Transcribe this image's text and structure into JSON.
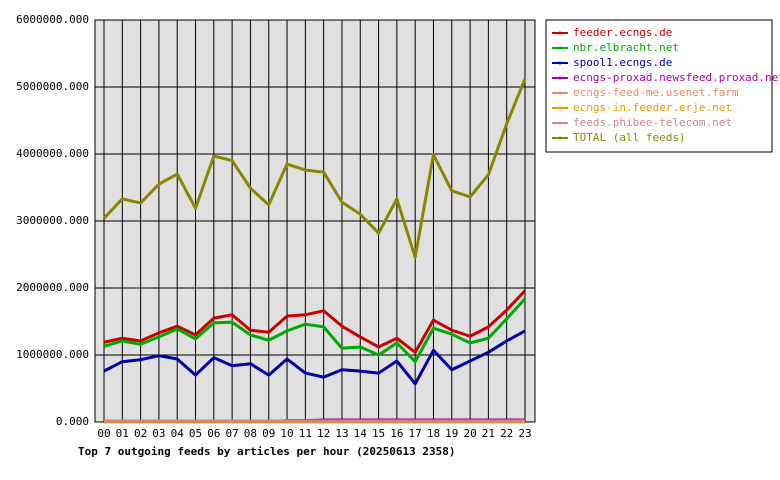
{
  "chart_data": {
    "type": "line",
    "title": "Top 7 outgoing feeds by articles per hour (20250613 2358)",
    "categories": [
      "00",
      "01",
      "02",
      "03",
      "04",
      "05",
      "06",
      "07",
      "08",
      "09",
      "10",
      "11",
      "12",
      "13",
      "14",
      "15",
      "16",
      "17",
      "18",
      "19",
      "20",
      "21",
      "22",
      "23"
    ],
    "ylim": [
      0,
      6000000
    ],
    "yticks": [
      {
        "value": 0,
        "label": "0.000"
      },
      {
        "value": 1000000,
        "label": "1000000.000"
      },
      {
        "value": 2000000,
        "label": "2000000.000"
      },
      {
        "value": 3000000,
        "label": "3000000.000"
      },
      {
        "value": 4000000,
        "label": "4000000.000"
      },
      {
        "value": 5000000,
        "label": "5000000.000"
      },
      {
        "value": 6000000,
        "label": "6000000.000"
      }
    ],
    "grid": true,
    "legend": "right",
    "series": [
      {
        "name": "feeder.ecngs.de",
        "color": "#cc0000",
        "values": [
          1190000,
          1250000,
          1210000,
          1330000,
          1430000,
          1300000,
          1550000,
          1600000,
          1370000,
          1340000,
          1580000,
          1600000,
          1660000,
          1430000,
          1270000,
          1120000,
          1250000,
          1040000,
          1520000,
          1370000,
          1280000,
          1420000,
          1670000,
          1960000
        ]
      },
      {
        "name": "nbr.elbracht.net",
        "color": "#00aa00",
        "values": [
          1130000,
          1210000,
          1160000,
          1270000,
          1390000,
          1240000,
          1480000,
          1490000,
          1300000,
          1220000,
          1360000,
          1460000,
          1420000,
          1100000,
          1120000,
          1000000,
          1180000,
          900000,
          1400000,
          1310000,
          1180000,
          1250000,
          1540000,
          1840000
        ]
      },
      {
        "name": "spool1.ecngs.de",
        "color": "#0000aa",
        "values": [
          760000,
          900000,
          930000,
          990000,
          940000,
          700000,
          960000,
          840000,
          870000,
          700000,
          940000,
          730000,
          670000,
          780000,
          760000,
          730000,
          910000,
          570000,
          1070000,
          780000,
          910000,
          1040000,
          1210000,
          1360000
        ]
      },
      {
        "name": "ecngs-proxad.newsfeed.proxad.net",
        "color": "#aa00aa",
        "values": [
          0,
          0,
          0,
          0,
          0,
          0,
          0,
          0,
          0,
          0,
          20000,
          20000,
          30000,
          30000,
          30000,
          30000,
          30000,
          30000,
          30000,
          30000,
          30000,
          30000,
          30000,
          30000
        ]
      },
      {
        "name": "ecngs-feed-me.usenet.farm",
        "color": "#ee8866",
        "values": [
          10000,
          10000,
          10000,
          10000,
          10000,
          10000,
          10000,
          10000,
          10000,
          10000,
          10000,
          10000,
          10000,
          10000,
          10000,
          10000,
          10000,
          10000,
          10000,
          10000,
          10000,
          10000,
          10000,
          10000
        ]
      },
      {
        "name": "ecngs-in.feeder.erje.net",
        "color": "#ee9900",
        "values": [
          0,
          0,
          0,
          0,
          0,
          0,
          0,
          0,
          0,
          0,
          0,
          0,
          0,
          0,
          0,
          0,
          0,
          0,
          0,
          0,
          0,
          0,
          0,
          0
        ]
      },
      {
        "name": "feeds.phibee-telecom.net",
        "color": "#cc8888",
        "values": [
          15000,
          15000,
          15000,
          15000,
          15000,
          15000,
          15000,
          15000,
          15000,
          15000,
          15000,
          15000,
          15000,
          15000,
          15000,
          15000,
          15000,
          15000,
          15000,
          15000,
          15000,
          15000,
          15000,
          15000
        ]
      },
      {
        "name": "TOTAL (all feeds)",
        "color": "#888800",
        "values": [
          3040000,
          3330000,
          3270000,
          3550000,
          3700000,
          3190000,
          3970000,
          3900000,
          3490000,
          3240000,
          3850000,
          3760000,
          3730000,
          3280000,
          3100000,
          2820000,
          3330000,
          2460000,
          3990000,
          3450000,
          3360000,
          3690000,
          4450000,
          5120000
        ]
      }
    ]
  }
}
